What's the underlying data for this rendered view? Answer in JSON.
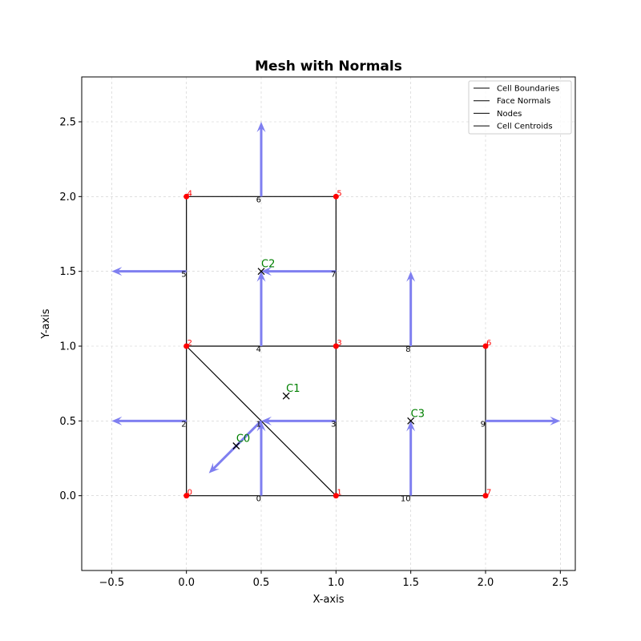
{
  "chart_data": {
    "type": "mesh",
    "title": "Mesh with Normals",
    "xlabel": "X-axis",
    "ylabel": "Y-axis",
    "xlim": [
      -0.7,
      2.6
    ],
    "ylim": [
      -0.5,
      2.8
    ],
    "grid": true,
    "legend_position": "top-right",
    "xticks": [
      {
        "value": -0.5,
        "label": "−0.5"
      },
      {
        "value": 0.0,
        "label": "0.0"
      },
      {
        "value": 0.5,
        "label": "0.5"
      },
      {
        "value": 1.0,
        "label": "1.0"
      },
      {
        "value": 1.5,
        "label": "1.5"
      },
      {
        "value": 2.0,
        "label": "2.0"
      },
      {
        "value": 2.5,
        "label": "2.5"
      }
    ],
    "yticks": [
      {
        "value": 0.0,
        "label": "0.0"
      },
      {
        "value": 0.5,
        "label": "0.5"
      },
      {
        "value": 1.0,
        "label": "1.0"
      },
      {
        "value": 1.5,
        "label": "1.5"
      },
      {
        "value": 2.0,
        "label": "2.0"
      },
      {
        "value": 2.5,
        "label": "2.5"
      }
    ],
    "legend": [
      "Cell Boundaries",
      "Face Normals",
      "Nodes",
      "Cell Centroids"
    ],
    "nodes": [
      {
        "label": "0",
        "x": 0,
        "y": 0
      },
      {
        "label": "1",
        "x": 1,
        "y": 0
      },
      {
        "label": "2",
        "x": 0,
        "y": 1
      },
      {
        "label": "3",
        "x": 1,
        "y": 1
      },
      {
        "label": "4",
        "x": 0,
        "y": 2
      },
      {
        "label": "5",
        "x": 1,
        "y": 2
      },
      {
        "label": "6",
        "x": 2,
        "y": 1
      },
      {
        "label": "7",
        "x": 2,
        "y": 0
      }
    ],
    "faces": [
      {
        "label": "0",
        "from": 0,
        "to": 1,
        "mid": [
          0.5,
          0
        ],
        "normal": [
          0,
          0.5
        ]
      },
      {
        "label": "1",
        "from": 1,
        "to": 2,
        "mid": [
          0.5,
          0.5
        ],
        "normal": [
          -0.35,
          -0.35
        ]
      },
      {
        "label": "2",
        "from": 2,
        "to": 0,
        "mid": [
          0,
          0.5
        ],
        "normal": [
          -0.5,
          0
        ]
      },
      {
        "label": "3",
        "from": 1,
        "to": 3,
        "mid": [
          1,
          0.5
        ],
        "normal": [
          -0.5,
          0
        ]
      },
      {
        "label": "4",
        "from": 3,
        "to": 2,
        "mid": [
          0.5,
          1
        ],
        "normal": [
          0,
          0.5
        ]
      },
      {
        "label": "5",
        "from": 2,
        "to": 4,
        "mid": [
          0,
          1.5
        ],
        "normal": [
          -0.5,
          0
        ]
      },
      {
        "label": "6",
        "from": 4,
        "to": 5,
        "mid": [
          0.5,
          2
        ],
        "normal": [
          0,
          0.5
        ]
      },
      {
        "label": "7",
        "from": 5,
        "to": 3,
        "mid": [
          1,
          1.5
        ],
        "normal": [
          -0.5,
          0
        ]
      },
      {
        "label": "8",
        "from": 3,
        "to": 6,
        "mid": [
          1.5,
          1
        ],
        "normal": [
          0,
          0.5
        ]
      },
      {
        "label": "9",
        "from": 6,
        "to": 7,
        "mid": [
          2,
          0.5
        ],
        "normal": [
          0.5,
          0
        ]
      },
      {
        "label": "10",
        "from": 7,
        "to": 1,
        "mid": [
          1.5,
          0
        ],
        "normal": [
          0,
          0.5
        ]
      }
    ],
    "centroids": [
      {
        "label": "C0",
        "x": 0.333,
        "y": 0.333
      },
      {
        "label": "C1",
        "x": 0.667,
        "y": 0.667
      },
      {
        "label": "C2",
        "x": 0.5,
        "y": 1.5
      },
      {
        "label": "C3",
        "x": 1.5,
        "y": 0.5
      }
    ],
    "colors": {
      "boundary": "#000000",
      "normal": "#7f7ff0",
      "node": "#ff0000",
      "node_label": "#ff0000",
      "centroid_marker": "#000000",
      "centroid_label": "#008000",
      "grid": "#cccccc"
    }
  }
}
